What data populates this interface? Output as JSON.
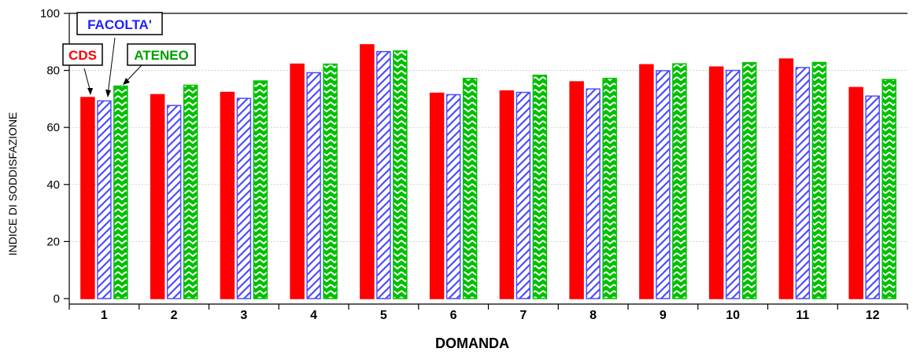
{
  "chart_data": {
    "type": "bar",
    "xlabel": "DOMANDA",
    "ylabel": "INDICE DI SODDISFAZIONE",
    "ylim": [
      0,
      100
    ],
    "yticks": [
      0,
      20,
      40,
      60,
      80,
      100
    ],
    "categories": [
      "1",
      "2",
      "3",
      "4",
      "5",
      "6",
      "7",
      "8",
      "9",
      "10",
      "11",
      "12"
    ],
    "series": [
      {
        "name": "CDS",
        "color": "#ff0000",
        "pattern": "solid",
        "values": [
          70.5,
          71.5,
          72.3,
          82.2,
          89.0,
          72.0,
          72.8,
          76.0,
          82.0,
          81.2,
          84.0,
          74.0
        ]
      },
      {
        "name": "FACOLTA'",
        "color": "#4d4dff",
        "pattern": "diagonal-hatch",
        "values": [
          69.3,
          67.7,
          70.2,
          79.2,
          86.6,
          71.5,
          72.3,
          73.5,
          79.9,
          80.0,
          81.0,
          71.0
        ]
      },
      {
        "name": "ATENEO",
        "color": "#00c000",
        "pattern": "chevron",
        "values": [
          74.5,
          74.8,
          76.3,
          82.2,
          86.8,
          77.2,
          78.3,
          77.2,
          82.3,
          82.7,
          82.8,
          76.8
        ]
      }
    ],
    "grid": true,
    "legend": "callout labels above first category group"
  }
}
